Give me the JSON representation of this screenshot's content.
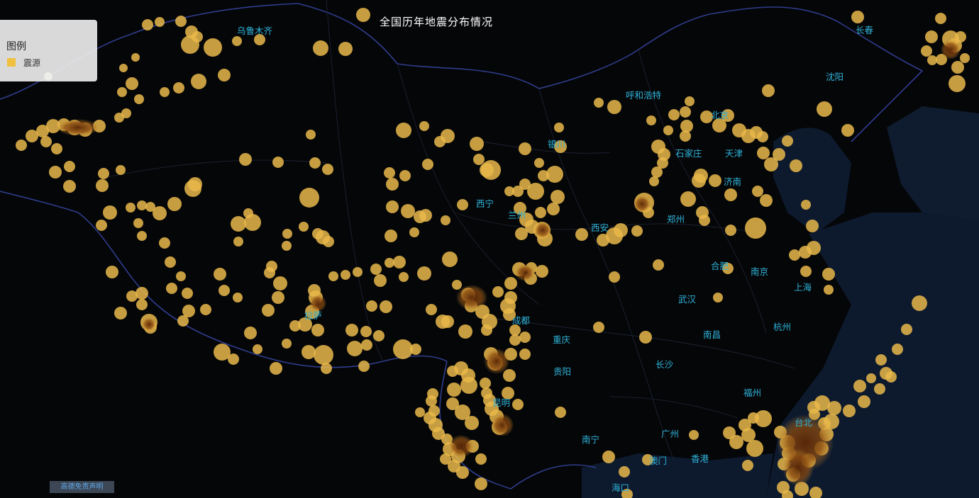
{
  "title": "全国历年地震分布情况",
  "legend": {
    "title": "图例",
    "items": [
      {
        "label": "震源",
        "color": "#f0c040"
      }
    ]
  },
  "disclaimer": "高德免责声明",
  "cities": [
    "乌鲁木齐",
    "长春",
    "沈阳",
    "呼和浩特",
    "北京",
    "银川",
    "石家庄",
    "天津",
    "济南",
    "西宁",
    "兰州",
    "郑州",
    "西安",
    "南京",
    "上海",
    "武汉",
    "拉萨",
    "成都",
    "合肥",
    "杭州",
    "南昌",
    "重庆",
    "贵阳",
    "长沙",
    "福州",
    "昆明",
    "台北",
    "南宁",
    "广州",
    "澳门",
    "香港",
    "海口"
  ],
  "colors": {
    "background": "#050608",
    "sea": "#0d1a2e",
    "border": "#2f3d8c",
    "label": "#2fb3d9",
    "quake": "#e9b94a",
    "quake_dense": "#7a3a08"
  }
}
